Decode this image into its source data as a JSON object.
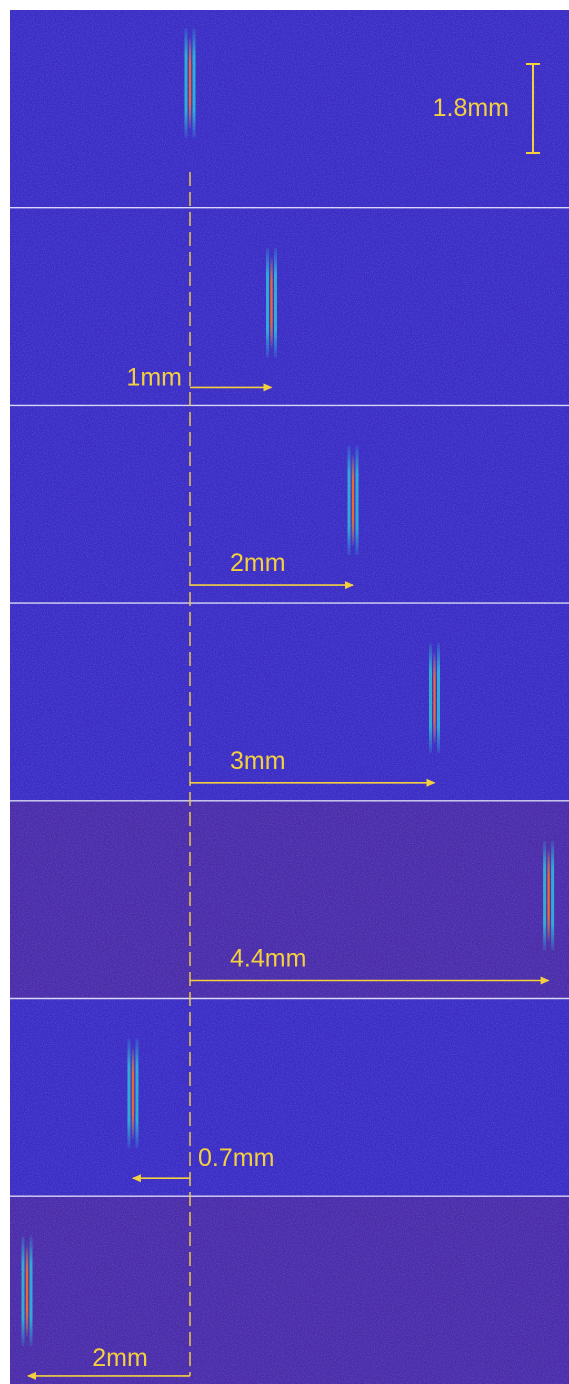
{
  "colors": {
    "background": "#3a2bc4",
    "background_alt": "#4a2aa8",
    "annotation": "#f4d03f",
    "separator": "#d9d7f2",
    "beam_outer": "#2fb8d8",
    "beam_core": "#f06a2a"
  },
  "scale_bar": {
    "label": "1.8mm"
  },
  "panels": [
    {
      "offset_mm": 0,
      "label": ""
    },
    {
      "offset_mm": 1,
      "label": "1mm"
    },
    {
      "offset_mm": 2,
      "label": "2mm"
    },
    {
      "offset_mm": 3,
      "label": "3mm"
    },
    {
      "offset_mm": 4.4,
      "label": "4.4mm"
    },
    {
      "offset_mm": -0.7,
      "label": "0.7mm"
    },
    {
      "offset_mm": -2,
      "label": "2mm"
    }
  ]
}
